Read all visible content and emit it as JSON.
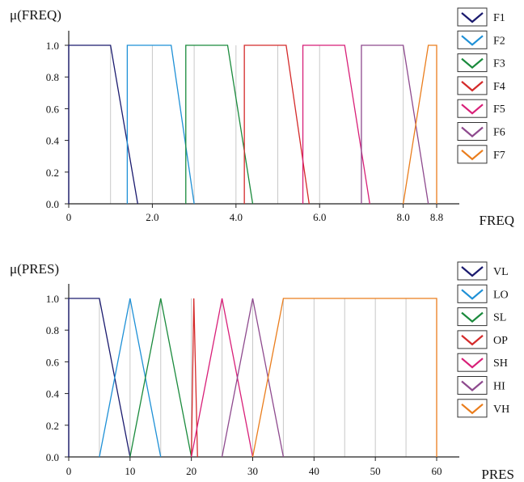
{
  "chart_data": [
    {
      "type": "line",
      "ylabel": "μ(FREQ)",
      "xlabel": "FREQ",
      "xlim": [
        0,
        8.8
      ],
      "ylim": [
        0,
        1.0
      ],
      "x_ticks": [
        0,
        2.0,
        4.0,
        6.0,
        8.0,
        8.8
      ],
      "x_tick_labels": [
        "0",
        "2.0",
        "4.0",
        "6.0",
        "8.0",
        "8.8"
      ],
      "x_gridlines": [
        0,
        1,
        2,
        3,
        4,
        5,
        6,
        7,
        8,
        8.8
      ],
      "y_ticks": [
        0.0,
        0.2,
        0.4,
        0.6,
        0.8,
        1.0
      ],
      "y_tick_labels": [
        "0.0",
        "0.2",
        "0.4",
        "0.6",
        "0.8",
        "1.0"
      ],
      "grid": "vertical",
      "legend_position": "right",
      "series": [
        {
          "name": "F1",
          "color": "#1a1a6e",
          "points": [
            [
              0,
              0
            ],
            [
              0,
              1
            ],
            [
              1.0,
              1
            ],
            [
              1.65,
              0
            ]
          ]
        },
        {
          "name": "F2",
          "color": "#1e90d6",
          "points": [
            [
              1.4,
              0
            ],
            [
              1.4,
              1
            ],
            [
              2.45,
              1
            ],
            [
              3.0,
              0
            ]
          ]
        },
        {
          "name": "F3",
          "color": "#1a8a3c",
          "points": [
            [
              2.8,
              0
            ],
            [
              2.8,
              1
            ],
            [
              3.8,
              1
            ],
            [
              4.4,
              0
            ]
          ]
        },
        {
          "name": "F4",
          "color": "#d42a2a",
          "points": [
            [
              4.2,
              0
            ],
            [
              4.2,
              1
            ],
            [
              5.2,
              1
            ],
            [
              5.75,
              0
            ]
          ]
        },
        {
          "name": "F5",
          "color": "#d81f78",
          "points": [
            [
              5.6,
              0
            ],
            [
              5.6,
              1
            ],
            [
              6.6,
              1
            ],
            [
              7.2,
              0
            ]
          ]
        },
        {
          "name": "F6",
          "color": "#8e4a8e",
          "points": [
            [
              7.0,
              0
            ],
            [
              7.0,
              1
            ],
            [
              8.0,
              1
            ],
            [
              8.6,
              0
            ]
          ]
        },
        {
          "name": "F7",
          "color": "#ea7d1c",
          "points": [
            [
              8.0,
              0
            ],
            [
              8.6,
              1
            ],
            [
              8.8,
              1
            ],
            [
              8.8,
              0
            ]
          ]
        }
      ]
    },
    {
      "type": "line",
      "ylabel": "μ(PRES)",
      "xlabel": "PRES",
      "xlim": [
        0,
        60
      ],
      "ylim": [
        0,
        1.0
      ],
      "x_ticks": [
        0,
        10,
        20,
        30,
        40,
        50,
        60
      ],
      "x_tick_labels": [
        "0",
        "10",
        "20",
        "30",
        "40",
        "50",
        "60"
      ],
      "x_gridlines": [
        0,
        5,
        10,
        15,
        20,
        25,
        30,
        35,
        40,
        45,
        50,
        55,
        60
      ],
      "y_ticks": [
        0.0,
        0.2,
        0.4,
        0.6,
        0.8,
        1.0
      ],
      "y_tick_labels": [
        "0.0",
        "0.2",
        "0.4",
        "0.6",
        "0.8",
        "1.0"
      ],
      "grid": "vertical",
      "legend_position": "right",
      "series": [
        {
          "name": "VL",
          "color": "#1a1a6e",
          "points": [
            [
              0,
              0
            ],
            [
              0,
              1
            ],
            [
              5,
              1
            ],
            [
              10,
              0
            ]
          ]
        },
        {
          "name": "LO",
          "color": "#1e90d6",
          "points": [
            [
              5,
              0
            ],
            [
              10,
              1
            ],
            [
              15,
              0
            ]
          ]
        },
        {
          "name": "SL",
          "color": "#1a8a3c",
          "points": [
            [
              10,
              0
            ],
            [
              15,
              1
            ],
            [
              20,
              0
            ]
          ]
        },
        {
          "name": "OP",
          "color": "#d42a2a",
          "points": [
            [
              20,
              0
            ],
            [
              20.4,
              1
            ],
            [
              21,
              0
            ]
          ]
        },
        {
          "name": "SH",
          "color": "#d81f78",
          "points": [
            [
              20,
              0
            ],
            [
              25,
              1
            ],
            [
              30,
              0
            ]
          ]
        },
        {
          "name": "HI",
          "color": "#8e4a8e",
          "points": [
            [
              25,
              0
            ],
            [
              30,
              1
            ],
            [
              35,
              0
            ]
          ]
        },
        {
          "name": "VH",
          "color": "#ea7d1c",
          "points": [
            [
              30,
              0
            ],
            [
              35,
              1
            ],
            [
              60,
              1
            ],
            [
              60,
              0
            ]
          ]
        }
      ]
    }
  ]
}
